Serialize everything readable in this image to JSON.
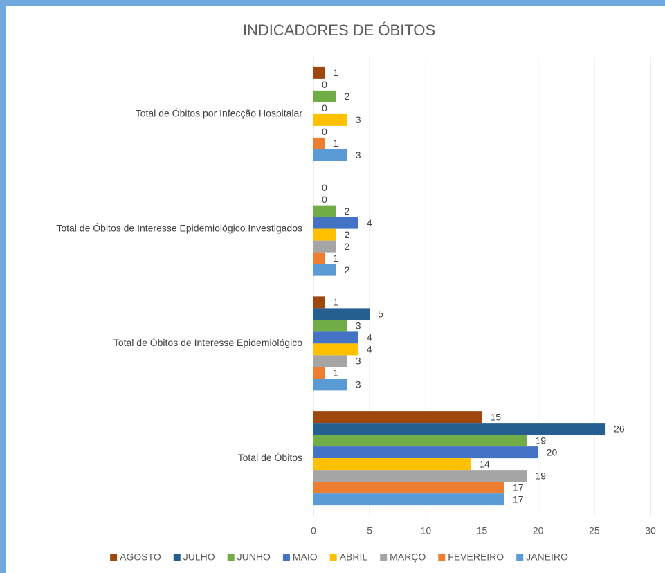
{
  "chart_data": {
    "type": "bar",
    "orientation": "horizontal",
    "title": "INDICADORES DE ÓBITOS",
    "categories": [
      "Total de Óbitos por Infecção Hospitalar",
      "Total de Óbitos de Interesse Epidemiológico Investigados",
      "Total de Óbitos de Interesse Epidemiológico",
      "Total de Óbitos"
    ],
    "series": [
      {
        "name": "AGOSTO",
        "color": "#9e480e",
        "values": [
          1,
          0,
          1,
          15
        ]
      },
      {
        "name": "JULHO",
        "color": "#255e91",
        "values": [
          0,
          0,
          5,
          26
        ]
      },
      {
        "name": "JUNHO",
        "color": "#70ad47",
        "values": [
          2,
          2,
          3,
          19
        ]
      },
      {
        "name": "MAIO",
        "color": "#4472c4",
        "values": [
          0,
          4,
          4,
          20
        ]
      },
      {
        "name": "ABRIL",
        "color": "#ffc000",
        "values": [
          3,
          2,
          4,
          14
        ]
      },
      {
        "name": "MARÇO",
        "color": "#a5a5a5",
        "values": [
          0,
          2,
          3,
          19
        ]
      },
      {
        "name": "FEVEREIRO",
        "color": "#ed7d31",
        "values": [
          1,
          1,
          1,
          17
        ]
      },
      {
        "name": "JANEIRO",
        "color": "#5b9bd5",
        "values": [
          3,
          2,
          3,
          17
        ]
      }
    ],
    "xlim": [
      0,
      30
    ],
    "xticks": [
      0,
      5,
      10,
      15,
      20,
      25,
      30
    ],
    "grid": true,
    "legend": "bottom"
  }
}
